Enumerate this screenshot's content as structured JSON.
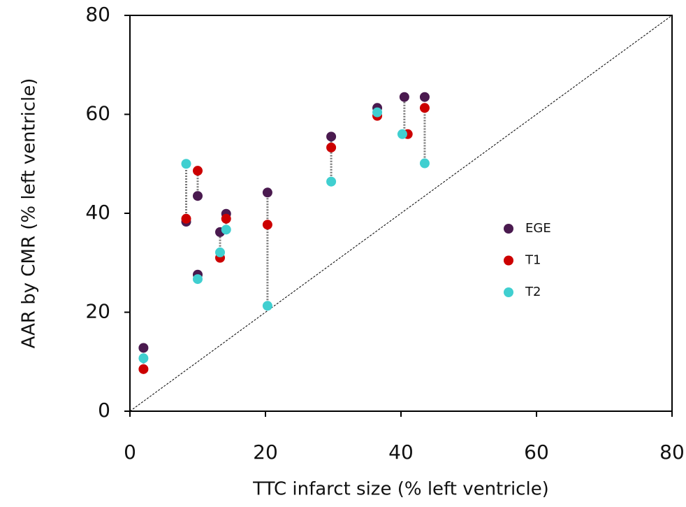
{
  "chart_data": {
    "type": "scatter",
    "x_label": "TTC infarct size (% left ventricle)",
    "y_label": "AAR by CMR  (% left ventricle)",
    "xlim": [
      0,
      80
    ],
    "ylim": [
      0,
      80
    ],
    "xticks": [
      0,
      20,
      40,
      60,
      80
    ],
    "yticks": [
      0,
      20,
      40,
      60,
      80
    ],
    "diagonal": true,
    "legend": "right",
    "series": [
      {
        "name": "EGE",
        "color": "#4a1a4f",
        "x": [
          2,
          8.3,
          10,
          10,
          13.3,
          14.2,
          20.3,
          29.7,
          36.5,
          40.5,
          43.5
        ],
        "values": [
          12.8,
          38.3,
          43.5,
          27.6,
          36.2,
          39.9,
          44.2,
          55.5,
          61.3,
          63.5,
          63.5
        ]
      },
      {
        "name": "T1",
        "color": "#cc0000",
        "x": [
          2,
          8.3,
          10,
          null,
          13.3,
          14.2,
          20.3,
          29.7,
          36.5,
          41.0,
          43.5
        ],
        "values": [
          8.5,
          38.9,
          48.6,
          null,
          31.0,
          38.9,
          37.7,
          53.3,
          59.7,
          56.0,
          61.3
        ]
      },
      {
        "name": "T2",
        "color": "#40cfd0",
        "x": [
          2,
          8.3,
          null,
          10,
          13.3,
          14.2,
          20.3,
          29.7,
          36.5,
          40.2,
          43.5
        ],
        "values": [
          10.7,
          50.0,
          null,
          26.7,
          32.1,
          36.7,
          21.3,
          46.4,
          60.4,
          56.0,
          50.1
        ]
      }
    ]
  }
}
